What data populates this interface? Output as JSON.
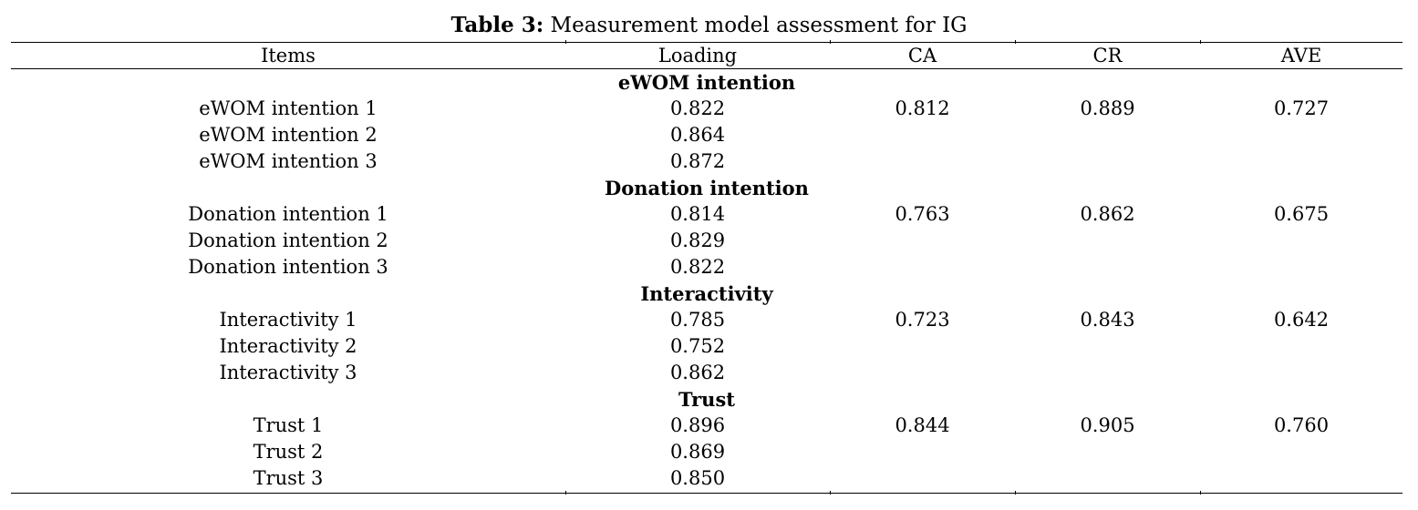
{
  "caption": {
    "label": "Table 3:",
    "text": " Measurement model assessment for IG"
  },
  "columns": [
    "Items",
    "Loading",
    "CA",
    "CR",
    "AVE"
  ],
  "groups": [
    {
      "name": "eWOM intention",
      "rows": [
        {
          "item": "eWOM intention 1",
          "loading": "0.822",
          "ca": "0.812",
          "cr": "0.889",
          "ave": "0.727"
        },
        {
          "item": "eWOM intention 2",
          "loading": "0.864",
          "ca": "",
          "cr": "",
          "ave": ""
        },
        {
          "item": "eWOM intention 3",
          "loading": "0.872",
          "ca": "",
          "cr": "",
          "ave": ""
        }
      ]
    },
    {
      "name": "Donation intention",
      "rows": [
        {
          "item": "Donation intention 1",
          "loading": "0.814",
          "ca": "0.763",
          "cr": "0.862",
          "ave": "0.675"
        },
        {
          "item": "Donation intention 2",
          "loading": "0.829",
          "ca": "",
          "cr": "",
          "ave": ""
        },
        {
          "item": "Donation intention 3",
          "loading": "0.822",
          "ca": "",
          "cr": "",
          "ave": ""
        }
      ]
    },
    {
      "name": "Interactivity",
      "rows": [
        {
          "item": "Interactivity 1",
          "loading": "0.785",
          "ca": "0.723",
          "cr": "0.843",
          "ave": "0.642"
        },
        {
          "item": "Interactivity 2",
          "loading": "0.752",
          "ca": "",
          "cr": "",
          "ave": ""
        },
        {
          "item": "Interactivity 3",
          "loading": "0.862",
          "ca": "",
          "cr": "",
          "ave": ""
        }
      ]
    },
    {
      "name": "Trust",
      "rows": [
        {
          "item": "Trust 1",
          "loading": "0.896",
          "ca": "0.844",
          "cr": "0.905",
          "ave": "0.760"
        },
        {
          "item": "Trust 2",
          "loading": "0.869",
          "ca": "",
          "cr": "",
          "ave": ""
        },
        {
          "item": "Trust 3",
          "loading": "0.850",
          "ca": "",
          "cr": "",
          "ave": ""
        }
      ]
    }
  ]
}
